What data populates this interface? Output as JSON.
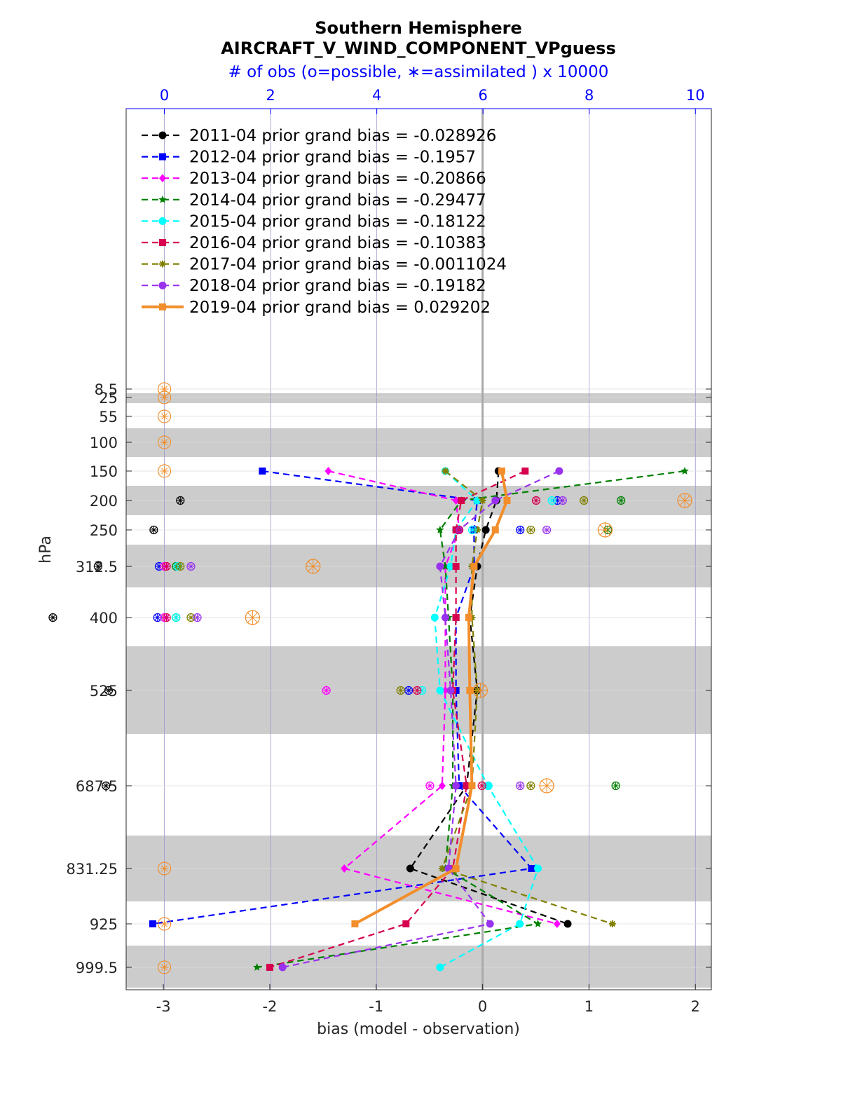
{
  "title_line1": "Southern Hemisphere",
  "title_line2": "AIRCRAFT_V_WIND_COMPONENT_VPguess",
  "top_axis_label": "# of obs (o=possible, ∗=assimilated ) x 10000",
  "xlabel": "bias (model - observation)",
  "ylabel": "hPa",
  "chart_data": {
    "type": "line",
    "title": "Southern Hemisphere AIRCRAFT_V_WIND_COMPONENT_VPguess",
    "xlabel": "bias (model - observation)",
    "ylabel": "hPa",
    "xlim": [
      -3.35,
      2.15
    ],
    "x_ticks": [
      -3,
      -2,
      -1,
      0,
      1,
      2
    ],
    "x_tick_labels": [
      "-3",
      "-2",
      "-1",
      "0",
      "1",
      "2"
    ],
    "top_axis": {
      "label": "# of obs (o=possible, ∗=assimilated ) x 10000",
      "ticks": [
        0,
        2,
        4,
        6,
        8,
        10
      ],
      "tick_labels": [
        "0",
        "2",
        "4",
        "6",
        "8",
        "10"
      ],
      "xlim": [
        -0.72,
        10.3
      ]
    },
    "y_axis_reversed": true,
    "levels": [
      8.5,
      25,
      55,
      100,
      150,
      200,
      250,
      312.5,
      400,
      525,
      687.5,
      831.25,
      925,
      999.5
    ],
    "level_labels": [
      "8.5",
      "25",
      "55",
      "100",
      "150",
      "200",
      "250",
      "312.5",
      "400",
      "525",
      "687.5",
      "831.25",
      "925",
      "999.5"
    ],
    "shaded_layers": [
      [
        17,
        36
      ],
      [
        75,
        125
      ],
      [
        175,
        225
      ],
      [
        275,
        350
      ],
      [
        450,
        600
      ],
      [
        775,
        900
      ],
      [
        975,
        1050
      ]
    ],
    "grid": true,
    "legend_placement": "top-left",
    "series": [
      {
        "name": "2011-04 prior grand bias = -0.028926",
        "color": "#000000",
        "marker": "circle",
        "style": "dashed",
        "bias": [
          null,
          null,
          null,
          null,
          0.15,
          0.13,
          0.03,
          -0.05,
          -0.12,
          -0.05,
          -0.15,
          -0.68,
          0.8,
          null
        ],
        "possible": [
          null,
          null,
          null,
          null,
          null,
          0.3,
          -0.2,
          -1.25,
          -2.1,
          -1.05,
          -1.1,
          null,
          null,
          null
        ],
        "assimilated": [
          null,
          null,
          null,
          null,
          null,
          0.3,
          -0.2,
          -1.25,
          -2.1,
          -1.05,
          -1.1,
          null,
          null,
          null
        ]
      },
      {
        "name": "2012-04 prior grand bias = -0.1957",
        "color": "#0000ff",
        "marker": "square",
        "style": "dashed",
        "bias": [
          null,
          null,
          null,
          null,
          -2.07,
          -0.05,
          -0.08,
          -0.08,
          -0.25,
          -0.25,
          -0.22,
          0.46,
          -3.1,
          null
        ],
        "possible": [
          null,
          null,
          null,
          null,
          null,
          7.4,
          6.7,
          -0.1,
          -0.13,
          4.6,
          null,
          null,
          null,
          null
        ],
        "assimilated": [
          null,
          null,
          null,
          null,
          null,
          7.4,
          6.7,
          -0.1,
          -0.13,
          4.6,
          null,
          null,
          null,
          null
        ]
      },
      {
        "name": "2013-04 prior grand bias = -0.20866",
        "color": "#ff00ff",
        "marker": "diamond",
        "style": "dashed",
        "bias": [
          null,
          null,
          null,
          null,
          -1.45,
          -0.25,
          -0.22,
          -0.35,
          -0.35,
          -0.35,
          -0.38,
          -1.3,
          0.7,
          null
        ],
        "possible": [
          null,
          null,
          null,
          null,
          null,
          null,
          null,
          0.0,
          0.0,
          3.05,
          5.0,
          null,
          null,
          null
        ],
        "assimilated": [
          null,
          null,
          null,
          null,
          null,
          null,
          null,
          0.0,
          0.0,
          3.05,
          5.0,
          null,
          null,
          null
        ]
      },
      {
        "name": "2014-04 prior grand bias = -0.29477",
        "color": "#008000",
        "marker": "star",
        "style": "dashed",
        "bias": [
          null,
          null,
          null,
          null,
          1.9,
          -0.2,
          -0.4,
          -0.35,
          -0.32,
          -0.28,
          -0.28,
          -0.35,
          0.52,
          -2.12
        ],
        "possible": [
          null,
          null,
          null,
          null,
          null,
          8.6,
          8.35,
          0.22,
          0.22,
          null,
          8.5,
          null,
          null,
          null
        ],
        "assimilated": [
          null,
          null,
          null,
          null,
          null,
          8.6,
          8.35,
          0.22,
          0.22,
          null,
          8.5,
          null,
          null,
          null
        ]
      },
      {
        "name": "2015-04 prior grand bias = -0.18122",
        "color": "#00ffff",
        "marker": "circle",
        "style": "dashed",
        "bias": [
          null,
          null,
          null,
          null,
          -0.35,
          -0.05,
          -0.25,
          -0.3,
          -0.45,
          -0.4,
          0.05,
          0.52,
          0.35,
          -0.4
        ],
        "possible": [
          null,
          null,
          null,
          null,
          null,
          7.3,
          5.8,
          0.25,
          0.22,
          4.85,
          6.1,
          null,
          null,
          null
        ],
        "assimilated": [
          null,
          null,
          null,
          null,
          null,
          7.3,
          5.8,
          0.25,
          0.22,
          4.85,
          6.1,
          null,
          null,
          null
        ]
      },
      {
        "name": "2016-04 prior grand bias = -0.10383",
        "color": "#d6004e",
        "marker": "square",
        "style": "dashed",
        "bias": [
          null,
          null,
          null,
          null,
          0.4,
          -0.2,
          -0.25,
          -0.25,
          -0.25,
          -0.28,
          -0.15,
          -0.28,
          -0.72,
          -2.0
        ],
        "possible": [
          null,
          null,
          null,
          null,
          null,
          7.0,
          5.55,
          0.04,
          0.04,
          4.76,
          5.98,
          null,
          null,
          null
        ],
        "assimilated": [
          null,
          null,
          null,
          null,
          null,
          7.0,
          5.55,
          0.04,
          0.04,
          4.76,
          5.98,
          null,
          null,
          null
        ]
      },
      {
        "name": "2017-04 prior grand bias = -0.0011024",
        "color": "#808000",
        "marker": "asterisk",
        "style": "dashed",
        "bias": [
          null,
          null,
          null,
          null,
          -0.35,
          0.0,
          -0.05,
          -0.1,
          -0.1,
          -0.05,
          -0.1,
          -0.38,
          1.22,
          null
        ],
        "possible": [
          null,
          null,
          null,
          null,
          null,
          7.9,
          6.9,
          0.3,
          0.5,
          4.45,
          6.9,
          null,
          null,
          null
        ],
        "assimilated": [
          null,
          null,
          null,
          null,
          null,
          7.9,
          6.9,
          0.3,
          0.5,
          4.45,
          6.9,
          null,
          null,
          null
        ]
      },
      {
        "name": "2018-04 prior grand bias = -0.19182",
        "color": "#9932ee",
        "marker": "circle",
        "style": "dashed",
        "bias": [
          null,
          null,
          null,
          null,
          0.72,
          0.12,
          -0.22,
          -0.4,
          -0.35,
          -0.3,
          -0.25,
          -0.32,
          0.07,
          -1.88
        ],
        "possible": [
          null,
          null,
          null,
          null,
          null,
          7.5,
          7.2,
          0.5,
          0.62,
          null,
          6.7,
          null,
          null,
          null
        ],
        "assimilated": [
          null,
          null,
          null,
          null,
          null,
          7.5,
          7.2,
          0.5,
          0.62,
          null,
          6.7,
          null,
          null,
          null
        ]
      },
      {
        "name": "2019-04 prior grand bias = 0.029202",
        "color": "#f28e2b",
        "marker": "square",
        "style": "solid",
        "bias": [
          null,
          null,
          null,
          null,
          0.18,
          0.23,
          0.12,
          -0.08,
          -0.13,
          -0.12,
          -0.1,
          -0.25,
          -1.2,
          null
        ],
        "possible": [
          0.0,
          0.0,
          0.0,
          0.0,
          0.0,
          9.8,
          8.3,
          2.8,
          1.66,
          5.95,
          7.2,
          0.0,
          0.0,
          0.0
        ],
        "assimilated": [
          0.0,
          0.0,
          0.0,
          0.0,
          0.0,
          9.8,
          8.3,
          2.8,
          1.66,
          5.95,
          7.2,
          0.0,
          0.0,
          0.0
        ]
      }
    ]
  }
}
